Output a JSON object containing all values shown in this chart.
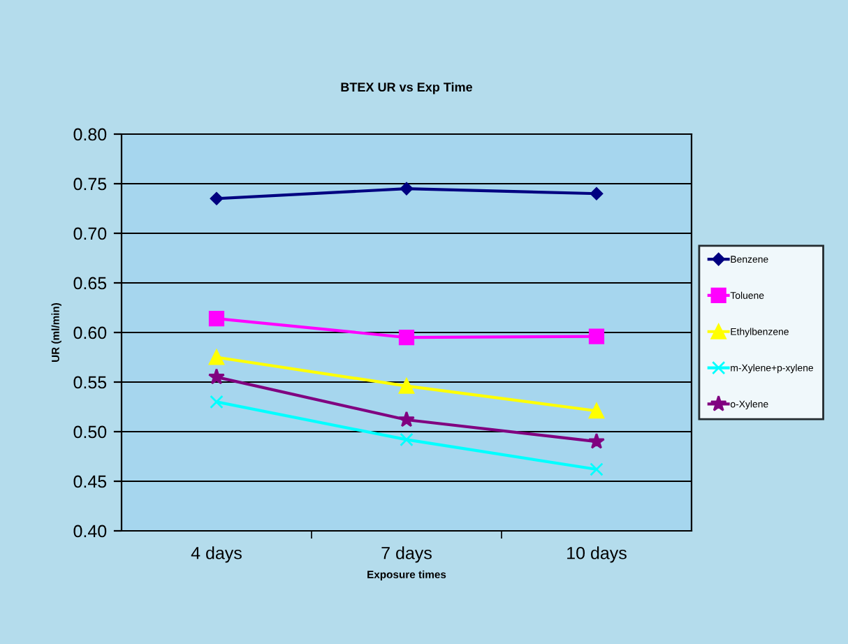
{
  "chart_data": {
    "type": "line",
    "title": "BTEX UR vs Exp Time",
    "xlabel": "Exposure times",
    "ylabel": "UR (ml/min)",
    "categories": [
      "4 days",
      "7 days",
      "10 days"
    ],
    "series": [
      {
        "name": "Benzene",
        "color": "#000080",
        "marker": "diamond",
        "values": [
          0.735,
          0.745,
          0.74
        ]
      },
      {
        "name": "Toluene",
        "color": "#ff00ff",
        "marker": "square",
        "values": [
          0.614,
          0.595,
          0.596
        ]
      },
      {
        "name": "Ethylbenzene",
        "color": "#ffff00",
        "marker": "triangle",
        "values": [
          0.575,
          0.546,
          0.521
        ]
      },
      {
        "name": "m-Xylene+p-xylene",
        "color": "#00ffff",
        "marker": "cross",
        "values": [
          0.53,
          0.492,
          0.462
        ]
      },
      {
        "name": "o-Xylene",
        "color": "#800080",
        "marker": "star",
        "values": [
          0.555,
          0.512,
          0.49
        ]
      }
    ],
    "ylim": [
      0.4,
      0.8
    ],
    "yticks": [
      {
        "value": 0.4,
        "label": "0.40"
      },
      {
        "value": 0.45,
        "label": "0.45"
      },
      {
        "value": 0.5,
        "label": "0.50"
      },
      {
        "value": 0.55,
        "label": "0.55"
      },
      {
        "value": 0.6,
        "label": "0.60"
      },
      {
        "value": 0.65,
        "label": "0.65"
      },
      {
        "value": 0.7,
        "label": "0.70"
      },
      {
        "value": 0.75,
        "label": "0.75"
      },
      {
        "value": 0.8,
        "label": "0.80"
      }
    ],
    "grid": "y",
    "legend": "right"
  }
}
